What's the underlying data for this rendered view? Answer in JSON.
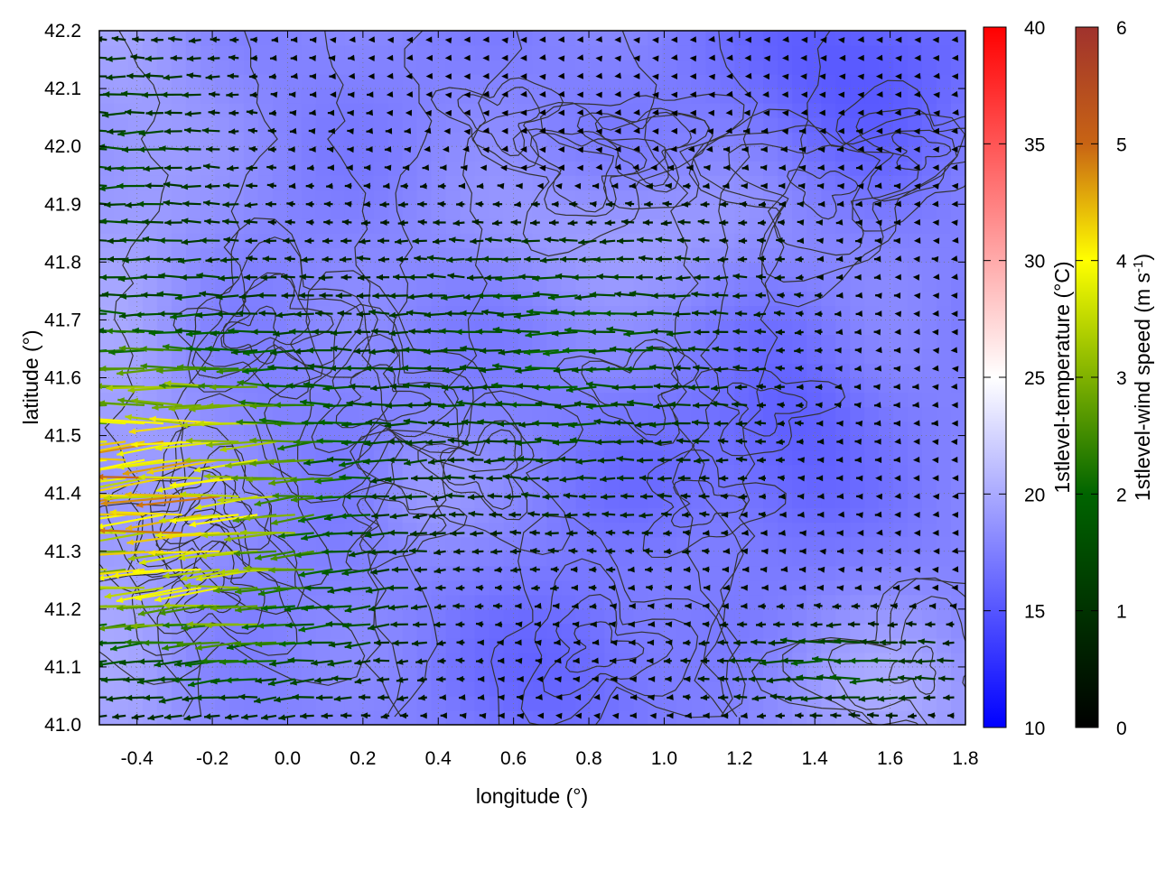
{
  "chart_data": {
    "type": "heatmap",
    "title": "",
    "xlabel": "longitude (°)",
    "ylabel": "latitude (°)",
    "xlim": [
      -0.5,
      1.8
    ],
    "ylim": [
      41.0,
      42.2
    ],
    "x_ticks": [
      "-0.4",
      "-0.2",
      "0.0",
      "0.2",
      "0.4",
      "0.6",
      "0.8",
      "1.0",
      "1.2",
      "1.4",
      "1.6",
      "1.8"
    ],
    "y_ticks": [
      "41.0",
      "41.1",
      "41.2",
      "41.3",
      "41.4",
      "41.5",
      "41.6",
      "41.7",
      "41.8",
      "41.9",
      "42.0",
      "42.1",
      "42.2"
    ],
    "grid": true,
    "layers": [
      "1stlevel-temperature (color shading)",
      "1stlevel-wind vectors (arrows colored by speed)",
      "contour lines (terrain)"
    ],
    "temperature_colorbar": {
      "label": "1stlevel-temperature (°C)",
      "range": [
        10,
        40
      ],
      "ticks": [
        "10",
        "15",
        "20",
        "25",
        "30",
        "35",
        "40"
      ],
      "colors": [
        "#0000ff",
        "#ffffff",
        "#ff0000"
      ]
    },
    "wind_colorbar": {
      "label_main": "1stlevel-wind speed (m s",
      "label_sup": "-1",
      "label_end": ")",
      "range": [
        0,
        6
      ],
      "ticks": [
        "0",
        "1",
        "2",
        "3",
        "4",
        "5",
        "6"
      ],
      "colors": [
        "#000000",
        "#006400",
        "#ffff00",
        "#c86414",
        "#a0322d"
      ]
    },
    "temperature_field_summary": {
      "typical_range_c": [
        14,
        22
      ],
      "coolest_region": "north-east and central-south (~14-16 °C)",
      "warmest_region": "south-east corner and west strip (~20-22 °C)"
    },
    "wind_field_summary": {
      "prevailing_direction": "from east (westward-pointing arrows)",
      "strongest_region": "west, lon -0.5 to 0.4, lat 41.1-41.6, speed ~3.5-5.5 m s-1",
      "moderate_bands": "lat 41.3-41.9 from lon 0.3 to 1.2, speed ~1.5-2.5 m s-1",
      "weak_region": "east of lon 1.2, mostly < 0.5 m s-1 except lat 41.0-41.2"
    }
  }
}
